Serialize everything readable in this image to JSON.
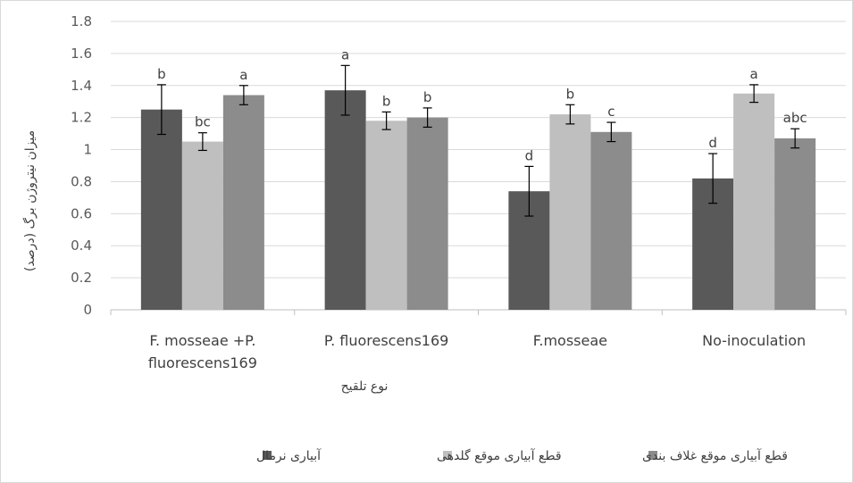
{
  "chart_data": {
    "type": "bar",
    "title": "",
    "xlabel": "نوع تلقیح",
    "ylabel": "میزان نیتروژن برگ (درصد)",
    "ylim": [
      0,
      1.8
    ],
    "yticks": [
      "0",
      "0.2",
      "0.4",
      "0.6",
      "0.8",
      "1",
      "1.2",
      "1.4",
      "1.6",
      "1.8"
    ],
    "grid": true,
    "legend_position": "bottom",
    "categories": [
      [
        "F. mosseae +P.",
        "fluorescens169"
      ],
      [
        "P. fluorescens169"
      ],
      [
        "F.mosseae"
      ],
      [
        "No-inoculation"
      ]
    ],
    "series": [
      {
        "name": "آبیاری نرمال",
        "color": "#595959",
        "values": [
          1.25,
          1.37,
          0.74,
          0.82
        ],
        "errors": [
          0.155,
          0.155,
          0.155,
          0.155
        ],
        "labels": [
          "b",
          "a",
          "d",
          "d"
        ]
      },
      {
        "name": "قطع آبیاری موقع گلدهی",
        "color": "#bfbfbf",
        "values": [
          1.05,
          1.18,
          1.22,
          1.35
        ],
        "errors": [
          0.055,
          0.055,
          0.06,
          0.055
        ],
        "labels": [
          "bc",
          "b",
          "b",
          "a"
        ]
      },
      {
        "name": "قطع آبیاری موقع غلاف بندی",
        "color": "#8c8c8c",
        "values": [
          1.34,
          1.2,
          1.11,
          1.07
        ],
        "errors": [
          0.06,
          0.06,
          0.06,
          0.06
        ],
        "labels": [
          "a",
          "b",
          "c",
          "abc"
        ]
      }
    ]
  }
}
